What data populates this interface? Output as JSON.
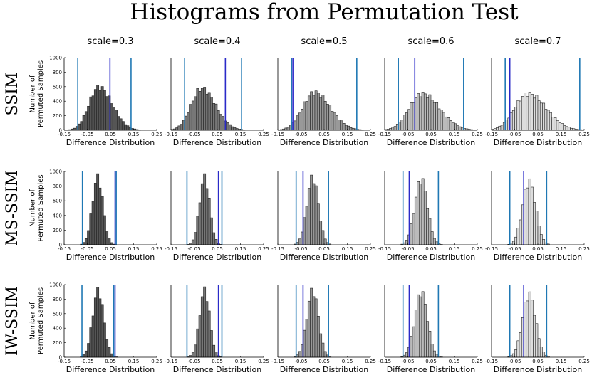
{
  "figure": {
    "title": "Histograms from Permutation Test"
  },
  "chart_data": {
    "type": "bar",
    "title": "Histograms from Permutation Test",
    "xlabel": "Difference Distribution",
    "ylabel": [
      "Number of",
      "Permuted Samples"
    ],
    "columns": [
      "scale=0.3",
      "scale=0.4",
      "scale=0.5",
      "scale=0.6",
      "scale=0.7"
    ],
    "rows": [
      "SSIM",
      "MS-SSIM",
      "IW-SSIM"
    ],
    "xlim": [
      -0.15,
      0.25
    ],
    "ylim": [
      0,
      1000
    ],
    "xticks": [
      "-0.15",
      "-0.05",
      "0.05",
      "0.15",
      "0.25"
    ],
    "yticks": [
      "0",
      "200",
      "400",
      "600",
      "800",
      "1000"
    ],
    "grid": false,
    "bar_colors": [
      "#555555",
      "#777777",
      "#999999",
      "#bbbbbb",
      "#dddddd"
    ],
    "line_colors": {
      "ci": "#1f78b4",
      "observed": "#2a2ac8"
    },
    "panels": [
      [
        {
          "mean": 0.0,
          "sd": 0.043,
          "peak": 640,
          "ci": [
            -0.091,
            0.139
          ],
          "observed": 0.048
        },
        {
          "mean": -0.018,
          "sd": 0.045,
          "peak": 620,
          "ci": [
            -0.091,
            0.155
          ],
          "observed": 0.085
        },
        {
          "mean": 0.008,
          "sd": 0.051,
          "peak": 560,
          "ci": [
            -0.091,
            0.191
          ],
          "observed": -0.085
        },
        {
          "mean": 0.012,
          "sd": 0.056,
          "peak": 540,
          "ci": [
            -0.091,
            0.191
          ],
          "observed": -0.02
        },
        {
          "mean": 0.008,
          "sd": 0.058,
          "peak": 540,
          "ci": [
            -0.091,
            0.231
          ],
          "observed": -0.071
        }
      ],
      [
        {
          "mean": -0.005,
          "sd": 0.023,
          "peak": 990,
          "ci": [
            -0.071,
            0.075
          ],
          "observed": 0.07
        },
        {
          "mean": -0.005,
          "sd": 0.022,
          "peak": 990,
          "ci": [
            -0.081,
            0.07
          ],
          "observed": 0.055
        },
        {
          "mean": 0.0,
          "sd": 0.025,
          "peak": 990,
          "ci": [
            -0.071,
            0.069
          ],
          "observed": -0.041
        },
        {
          "mean": 0.007,
          "sd": 0.027,
          "peak": 970,
          "ci": [
            -0.071,
            0.082
          ],
          "observed": -0.044
        },
        {
          "mean": 0.012,
          "sd": 0.028,
          "peak": 930,
          "ci": [
            -0.071,
            0.088
          ],
          "observed": -0.011
        }
      ],
      [
        {
          "mean": -0.003,
          "sd": 0.024,
          "peak": 990,
          "ci": [
            -0.073,
            0.064
          ],
          "observed": 0.07
        },
        {
          "mean": -0.005,
          "sd": 0.022,
          "peak": 990,
          "ci": [
            -0.081,
            0.07
          ],
          "observed": 0.055
        },
        {
          "mean": 0.0,
          "sd": 0.025,
          "peak": 990,
          "ci": [
            -0.071,
            0.069
          ],
          "observed": -0.041
        },
        {
          "mean": 0.007,
          "sd": 0.027,
          "peak": 970,
          "ci": [
            -0.071,
            0.082
          ],
          "observed": -0.044
        },
        {
          "mean": 0.012,
          "sd": 0.028,
          "peak": 930,
          "ci": [
            -0.071,
            0.088
          ],
          "observed": -0.011
        }
      ]
    ]
  }
}
